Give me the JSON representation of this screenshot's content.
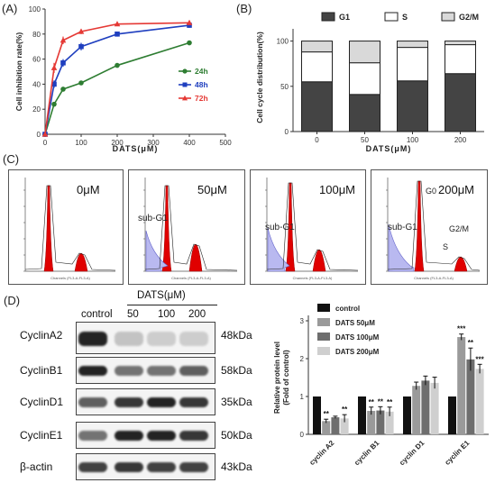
{
  "panels": {
    "a": "(A)",
    "b": "(B)",
    "c": "(C)",
    "d": "(D)"
  },
  "chart_data": [
    {
      "id": "A",
      "type": "line",
      "xlabel": "DATS(μM)",
      "ylabel": "Cell inhibition rate(%)",
      "xlim": [
        0,
        500
      ],
      "ylim": [
        0,
        100
      ],
      "xticks": [
        "0",
        "100",
        "200",
        "300",
        "400",
        "500"
      ],
      "yticks": [
        "0",
        "20",
        "40",
        "60",
        "80",
        "100"
      ],
      "x": [
        0,
        25,
        50,
        100,
        200,
        400
      ],
      "series": [
        {
          "name": "24h",
          "color": "#2e7d32",
          "marker": "circle",
          "values": [
            0,
            24,
            36,
            41,
            55,
            73
          ]
        },
        {
          "name": "48h",
          "color": "#1f3fbf",
          "marker": "square",
          "values": [
            0,
            40,
            57,
            70,
            80,
            87
          ]
        },
        {
          "name": "72h",
          "color": "#e53935",
          "marker": "triangle",
          "values": [
            0,
            53,
            75,
            82,
            88,
            89
          ]
        }
      ],
      "errors": {
        "72h": [
          0,
          4,
          3,
          2,
          1,
          1
        ],
        "48h": [
          0,
          3,
          3,
          3,
          2,
          2
        ]
      }
    },
    {
      "id": "B",
      "type": "bar",
      "stacked": true,
      "xlabel": "DATS(μM)",
      "ylabel": "Cell cycle distribution(%)",
      "ylim": [
        0,
        100
      ],
      "yticks": [
        "0",
        "50",
        "100"
      ],
      "categories": [
        "0",
        "50",
        "100",
        "200"
      ],
      "series": [
        {
          "name": "G1",
          "color": "#444444",
          "values": [
            55,
            41,
            56,
            64
          ]
        },
        {
          "name": "S",
          "color": "#ffffff",
          "values": [
            33,
            35,
            37,
            32
          ]
        },
        {
          "name": "G2/M",
          "color": "#d9d9d9",
          "values": [
            12,
            24,
            7,
            4
          ]
        }
      ]
    },
    {
      "id": "D",
      "type": "bar",
      "ylabel": "Relative protein level\n(Fold of control)",
      "ylim": [
        0,
        3.0
      ],
      "yticks": [
        "0",
        "1",
        "2",
        "3"
      ],
      "categories": [
        "cyclin A2",
        "cyclin B1",
        "cyclin D1",
        "cyclin E1"
      ],
      "series": [
        {
          "name": "control",
          "color": "#111111",
          "values": [
            1.0,
            1.0,
            1.0,
            1.0
          ]
        },
        {
          "name": "DATS 50μM",
          "color": "#9a9a9a",
          "values": [
            0.35,
            0.62,
            1.28,
            2.57
          ]
        },
        {
          "name": "DATS 100μM",
          "color": "#6e6e6e",
          "values": [
            0.45,
            0.63,
            1.42,
            1.98
          ]
        },
        {
          "name": "DATS 200μM",
          "color": "#cfcfcf",
          "values": [
            0.42,
            0.6,
            1.36,
            1.73
          ]
        }
      ],
      "errors": [
        [
          0,
          0.05,
          0.03,
          0.1
        ],
        [
          0,
          0.1,
          0.1,
          0.12
        ],
        [
          0,
          0.1,
          0.12,
          0.15
        ],
        [
          0,
          0.08,
          0.3,
          0.12
        ]
      ],
      "significance": [
        [
          "",
          "**",
          "",
          ""
        ],
        [
          "",
          "**",
          "",
          ""
        ],
        [
          "",
          "",
          "",
          ""
        ],
        [
          "",
          "***",
          "**",
          "***"
        ]
      ],
      "sig_matrix": [
        [
          "**",
          "",
          "**"
        ],
        [
          "**",
          "**",
          "**"
        ],
        [
          "",
          "",
          ""
        ],
        [
          "***",
          "**",
          "***"
        ]
      ]
    }
  ],
  "flow": {
    "doses": [
      "0μM",
      "50μM",
      "100μM",
      "200μM"
    ],
    "labels": {
      "subg1": "sub-G1",
      "g0": "G0",
      "s": "S",
      "g2m": "G2/M"
    }
  },
  "western": {
    "treatment": "DATS(μM)",
    "lanes": [
      "control",
      "50",
      "100",
      "200"
    ],
    "proteins": [
      {
        "name": "CyclinA2",
        "kda": "48kDa",
        "levels": [
          1.0,
          0.2,
          0.15,
          0.15
        ]
      },
      {
        "name": "CyclinB1",
        "kda": "58kDa",
        "levels": [
          1.0,
          0.6,
          0.6,
          0.7
        ]
      },
      {
        "name": "CyclinD1",
        "kda": "35kDa",
        "levels": [
          0.7,
          0.9,
          1.0,
          0.9
        ]
      },
      {
        "name": "CyclinE1",
        "kda": "50kDa",
        "levels": [
          0.6,
          1.0,
          1.0,
          0.9
        ]
      },
      {
        "name": "β-actin",
        "kda": "43kDa",
        "levels": [
          0.85,
          0.9,
          0.85,
          0.85
        ]
      }
    ]
  }
}
